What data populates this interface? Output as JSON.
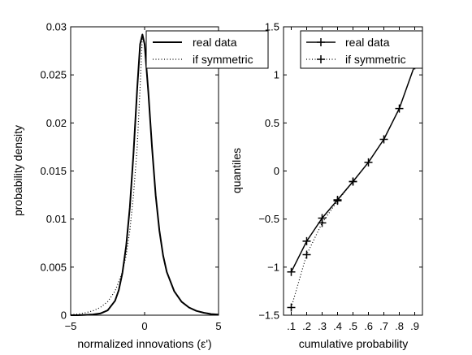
{
  "chart_data": [
    {
      "type": "line",
      "xlabel": "normalized innovations (ε')",
      "ylabel": "probability density",
      "xlim": [
        -5,
        5
      ],
      "ylim": [
        0,
        0.03
      ],
      "xticks": [
        -5,
        0,
        5
      ],
      "xtick_labels": [
        "−5",
        "0",
        "5"
      ],
      "yticks": [
        0,
        0.005,
        0.01,
        0.015,
        0.02,
        0.025,
        0.03
      ],
      "ytick_labels": [
        "0",
        "0.005",
        "0.01",
        "0.015",
        "0.02",
        "0.025",
        "0.03"
      ],
      "grid": false,
      "legend": "top-right",
      "series": [
        {
          "name": "real data",
          "style": "solid",
          "x": [
            -5,
            -4.5,
            -4,
            -3.5,
            -3,
            -2.5,
            -2,
            -1.75,
            -1.5,
            -1.25,
            -1,
            -0.75,
            -0.5,
            -0.3,
            -0.15,
            0,
            0.25,
            0.5,
            0.75,
            1,
            1.25,
            1.5,
            2,
            2.5,
            3,
            3.5,
            4,
            4.5,
            5
          ],
          "y": [
            0,
            0,
            3e-05,
            8e-05,
            0.00018,
            0.0005,
            0.0015,
            0.0026,
            0.0044,
            0.0072,
            0.0112,
            0.0168,
            0.0236,
            0.0282,
            0.0292,
            0.0282,
            0.0232,
            0.0175,
            0.0125,
            0.0088,
            0.0062,
            0.0045,
            0.0025,
            0.0014,
            0.0008,
            0.00045,
            0.00025,
            0.00012,
            6e-05
          ]
        },
        {
          "name": "if symmetric",
          "style": "dotted",
          "x": [
            -5,
            -4.5,
            -4,
            -3.5,
            -3,
            -2.5,
            -2,
            -1.5,
            -1.25,
            -1,
            -0.75,
            -0.5,
            -0.3,
            -0.15
          ],
          "y": [
            6e-05,
            0.00012,
            0.00025,
            0.00045,
            0.0008,
            0.0014,
            0.0025,
            0.0045,
            0.0062,
            0.0088,
            0.0125,
            0.0175,
            0.0238,
            0.0292
          ]
        }
      ]
    },
    {
      "type": "line",
      "xlabel": "cumulative probability",
      "ylabel": "quantiles",
      "xlim": [
        0.05,
        0.95
      ],
      "ylim": [
        -1.5,
        1.5
      ],
      "xticks": [
        0.1,
        0.2,
        0.3,
        0.4,
        0.5,
        0.6,
        0.7,
        0.8,
        0.9
      ],
      "xtick_labels": [
        ".1",
        ".2",
        ".3",
        ".4",
        ".5",
        ".6",
        ".7",
        ".8",
        ".9"
      ],
      "yticks": [
        -1.5,
        -1,
        -0.5,
        0,
        0.5,
        1,
        1.5
      ],
      "ytick_labels": [
        "−1.5",
        "−1",
        "−0.5",
        "0",
        "0.5",
        "1",
        "1.5"
      ],
      "grid": false,
      "legend": "top-right",
      "series": [
        {
          "name": "real data",
          "style": "solid",
          "marker": "+",
          "x": [
            0.1,
            0.2,
            0.3,
            0.4,
            0.5,
            0.6,
            0.7,
            0.8,
            0.9
          ],
          "y": [
            -1.05,
            -0.73,
            -0.49,
            -0.3,
            -0.11,
            0.09,
            0.33,
            0.65,
            1.1
          ]
        },
        {
          "name": "if symmetric",
          "style": "dotted",
          "marker": "+",
          "x": [
            0.1,
            0.2,
            0.3,
            0.4,
            0.5
          ],
          "y": [
            -1.42,
            -0.87,
            -0.54,
            -0.31,
            -0.11
          ]
        }
      ]
    }
  ]
}
